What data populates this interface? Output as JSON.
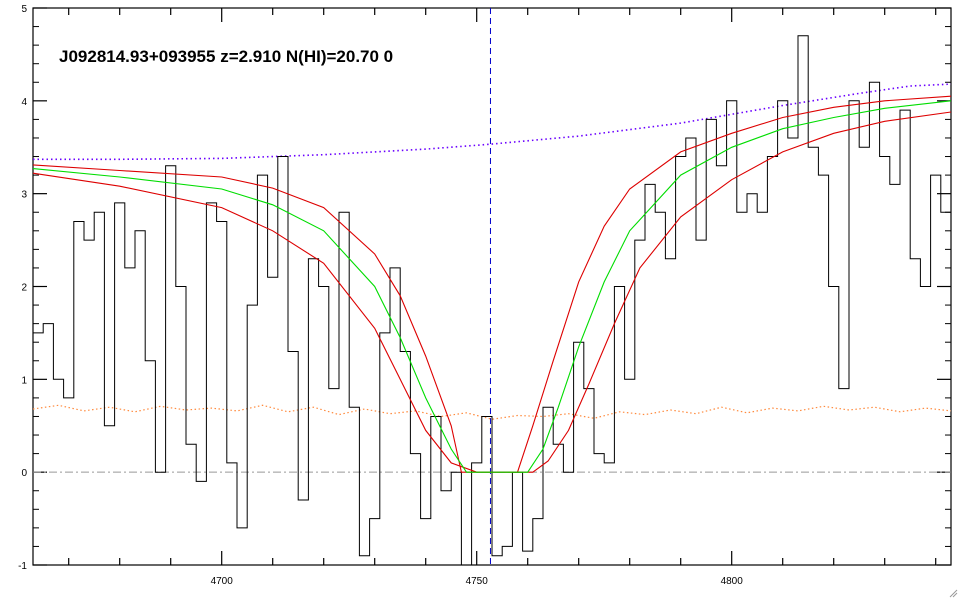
{
  "chart_data": {
    "type": "line",
    "title": "J092814.93+093955 z=2.910 N(HI)=20.70 0",
    "xlabel": "",
    "ylabel": "",
    "xlim": [
      4663,
      4843
    ],
    "ylim": [
      -1,
      5
    ],
    "x_ticks": [
      4700,
      4750,
      4800
    ],
    "y_ticks": [
      -1,
      0,
      1,
      2,
      3,
      4,
      5
    ],
    "grid": false,
    "center_marker": {
      "x": 4752.7,
      "color": "#0000cc",
      "style": "dashed"
    },
    "zero_line": {
      "y": 0,
      "color": "#999999",
      "style": "dash-dot"
    },
    "colors": {
      "flux": "#000000",
      "fit": "#00dd00",
      "fit_bounds": "#dd0000",
      "continuum": "#6a00ff",
      "error": "#ff8a3d"
    },
    "continuum": {
      "x": [
        4663,
        4680,
        4700,
        4720,
        4740,
        4752,
        4770,
        4790,
        4810,
        4825,
        4835,
        4843
      ],
      "y": [
        3.37,
        3.37,
        3.38,
        3.42,
        3.48,
        3.53,
        3.62,
        3.76,
        3.95,
        4.08,
        4.16,
        4.18
      ]
    },
    "fit": {
      "x": [
        4663,
        4680,
        4700,
        4710,
        4720,
        4730,
        4735,
        4740,
        4745,
        4748,
        4760,
        4763,
        4766,
        4770,
        4775,
        4780,
        4790,
        4800,
        4810,
        4820,
        4830,
        4843
      ],
      "y": [
        3.27,
        3.18,
        3.05,
        2.88,
        2.6,
        2.0,
        1.45,
        0.8,
        0.25,
        0.0,
        0.0,
        0.25,
        0.7,
        1.35,
        2.05,
        2.6,
        3.2,
        3.5,
        3.7,
        3.82,
        3.92,
        4.0
      ]
    },
    "fit_upper": {
      "x": [
        4663,
        4680,
        4700,
        4710,
        4720,
        4730,
        4735,
        4740,
        4745,
        4747,
        4758,
        4761,
        4765,
        4770,
        4775,
        4780,
        4790,
        4800,
        4810,
        4820,
        4830,
        4843
      ],
      "y": [
        3.31,
        3.25,
        3.18,
        3.06,
        2.85,
        2.35,
        1.9,
        1.25,
        0.5,
        0.0,
        0.0,
        0.5,
        1.2,
        2.05,
        2.65,
        3.05,
        3.45,
        3.65,
        3.82,
        3.93,
        4.0,
        4.05
      ]
    },
    "fit_lower": {
      "x": [
        4663,
        4680,
        4700,
        4710,
        4720,
        4730,
        4735,
        4740,
        4745,
        4750,
        4761,
        4764,
        4768,
        4772,
        4777,
        4782,
        4790,
        4800,
        4810,
        4820,
        4830,
        4843
      ],
      "y": [
        3.22,
        3.08,
        2.85,
        2.6,
        2.25,
        1.55,
        1.0,
        0.45,
        0.1,
        0.0,
        0.0,
        0.12,
        0.45,
        0.95,
        1.6,
        2.2,
        2.75,
        3.15,
        3.45,
        3.65,
        3.78,
        3.88
      ]
    },
    "error": {
      "x": [
        4663,
        4668,
        4673,
        4678,
        4683,
        4688,
        4693,
        4698,
        4703,
        4708,
        4713,
        4718,
        4723,
        4728,
        4733,
        4738,
        4743,
        4748,
        4753,
        4758,
        4763,
        4768,
        4773,
        4778,
        4783,
        4788,
        4793,
        4798,
        4803,
        4808,
        4813,
        4818,
        4823,
        4828,
        4833,
        4838,
        4843
      ],
      "y": [
        0.68,
        0.72,
        0.66,
        0.7,
        0.65,
        0.71,
        0.67,
        0.69,
        0.66,
        0.72,
        0.65,
        0.7,
        0.62,
        0.68,
        0.63,
        0.66,
        0.6,
        0.64,
        0.57,
        0.61,
        0.6,
        0.63,
        0.58,
        0.65,
        0.62,
        0.67,
        0.63,
        0.7,
        0.64,
        0.69,
        0.66,
        0.71,
        0.67,
        0.7,
        0.65,
        0.69,
        0.66
      ]
    },
    "flux": {
      "x": [
        4663,
        4665,
        4667,
        4669,
        4671,
        4673,
        4675,
        4677,
        4679,
        4681,
        4683,
        4685,
        4687,
        4689,
        4691,
        4693,
        4695,
        4697,
        4699,
        4701,
        4703,
        4705,
        4707,
        4709,
        4711,
        4713,
        4715,
        4717,
        4719,
        4721,
        4723,
        4725,
        4727,
        4729,
        4731,
        4733,
        4735,
        4737,
        4739,
        4741,
        4743,
        4745,
        4747,
        4749,
        4751,
        4753,
        4755,
        4757,
        4759,
        4761,
        4763,
        4765,
        4767,
        4769,
        4771,
        4773,
        4775,
        4777,
        4779,
        4781,
        4783,
        4785,
        4787,
        4789,
        4791,
        4793,
        4795,
        4797,
        4799,
        4801,
        4803,
        4805,
        4807,
        4809,
        4811,
        4813,
        4815,
        4817,
        4819,
        4821,
        4823,
        4825,
        4827,
        4829,
        4831,
        4833,
        4835,
        4837,
        4839,
        4841
      ],
      "y": [
        1.5,
        1.6,
        1.0,
        0.8,
        2.7,
        2.5,
        2.8,
        0.5,
        2.9,
        2.2,
        2.6,
        1.2,
        0.0,
        3.3,
        2.0,
        0.3,
        -0.1,
        2.9,
        2.7,
        0.1,
        -0.6,
        1.8,
        3.2,
        2.1,
        3.4,
        1.3,
        -0.3,
        2.3,
        2.0,
        0.9,
        2.8,
        0.7,
        -0.9,
        -0.5,
        1.5,
        2.2,
        1.3,
        0.2,
        -0.5,
        0.6,
        -0.2,
        0.0,
        -1.0,
        0.1,
        0.6,
        -0.9,
        -0.8,
        0.0,
        -0.85,
        -0.5,
        0.7,
        0.3,
        0.0,
        1.4,
        0.9,
        0.2,
        0.1,
        2.0,
        1.0,
        2.5,
        3.1,
        2.8,
        2.3,
        3.4,
        3.6,
        2.5,
        3.8,
        3.3,
        4.0,
        2.8,
        3.0,
        2.8,
        3.4,
        4.0,
        3.6,
        4.7,
        3.5,
        3.2,
        2.0,
        0.9,
        4.0,
        3.5,
        4.2,
        3.4,
        3.1,
        3.9,
        2.3,
        2.0,
        3.2,
        2.8
      ]
    }
  }
}
